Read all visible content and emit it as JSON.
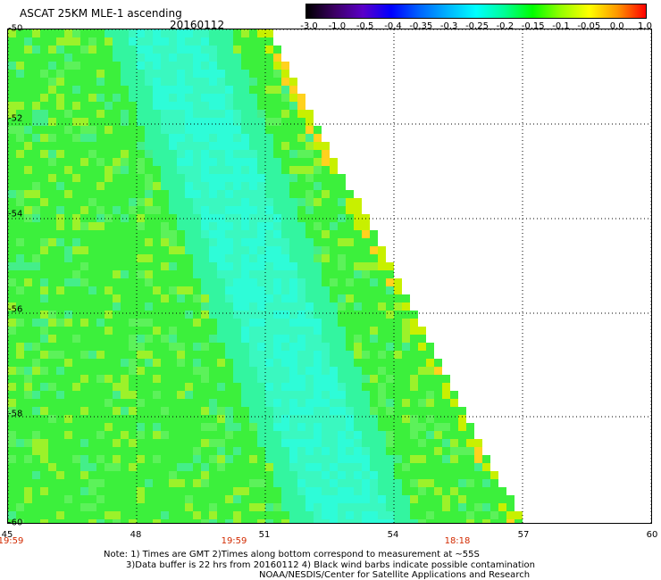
{
  "header": {
    "title": "ASCAT 25KM MLE-1 ascending",
    "date": "20160112"
  },
  "colorbar": {
    "labels": [
      "-3.0",
      "-1.0",
      "-0.5",
      "-0.4",
      "-0.35",
      "-0.3",
      "-0.25",
      "-0.2",
      "-0.15",
      "-0.1",
      "-0.05",
      "0.0",
      "1.0"
    ],
    "colors": [
      "#000000",
      "#3c0064",
      "#5a00c8",
      "#0000ff",
      "#0064ff",
      "#00b4ff",
      "#00ffff",
      "#00ff96",
      "#00ff00",
      "#96ff00",
      "#ffff00",
      "#ff9600",
      "#ff0000"
    ]
  },
  "map": {
    "x_ticks": [
      "45",
      "48",
      "51",
      "54",
      "57",
      "60"
    ],
    "y_ticks": [
      "-50",
      "-52",
      "-54",
      "-56",
      "-58",
      "-60"
    ],
    "time_labels": [
      "19:59",
      "19:59",
      "18:18"
    ],
    "lon_range": [
      45,
      60
    ],
    "lat_range": [
      -50,
      -60
    ],
    "swath_color_main": "#33ff33",
    "swath_color_alt": "#33ffcc"
  },
  "notes": {
    "line1": "Note: 1) Times are GMT 2)Times along bottom correspond to measurement at ~55S",
    "line2": "3)Data buffer is 22 hrs from 20160112 4) Black wind barbs indicate possible contamination",
    "line3": "NOAA/NESDIS/Center for Satellite Applications and Research"
  }
}
